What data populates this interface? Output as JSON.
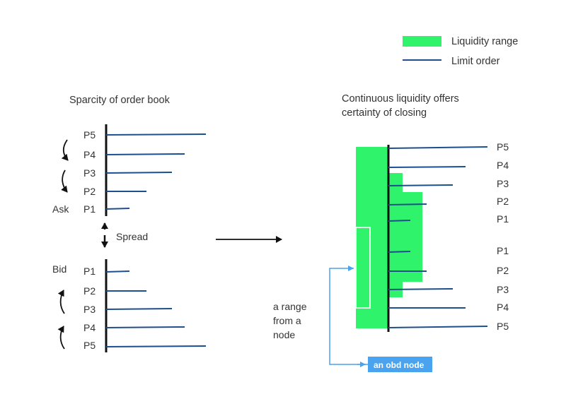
{
  "legend": {
    "liquidity_range": "Liquidity range",
    "limit_order": "Limit order"
  },
  "left": {
    "title": "Sparcity of order book",
    "ask_label": "Ask",
    "bid_label": "Bid",
    "spread_label": "Spread",
    "ask_prices": [
      "P5",
      "P4",
      "P3",
      "P2",
      "P1"
    ],
    "bid_prices": [
      "P1",
      "P2",
      "P3",
      "P4",
      "P5"
    ]
  },
  "right": {
    "title_line1": "Continuous liquidity offers",
    "title_line2": "certainty of closing",
    "ask_prices": [
      "P5",
      "P4",
      "P3",
      "P2",
      "P1"
    ],
    "bid_prices": [
      "P1",
      "P2",
      "P3",
      "P4",
      "P5"
    ],
    "note_line1": "a range",
    "note_line2": "from a",
    "note_line3": "node",
    "node_label": "an obd node"
  },
  "colors": {
    "liquidity": "#2ef36b",
    "limit_order": "#1f4e8c",
    "axis": "#111111",
    "node": "#4aa3ef"
  }
}
